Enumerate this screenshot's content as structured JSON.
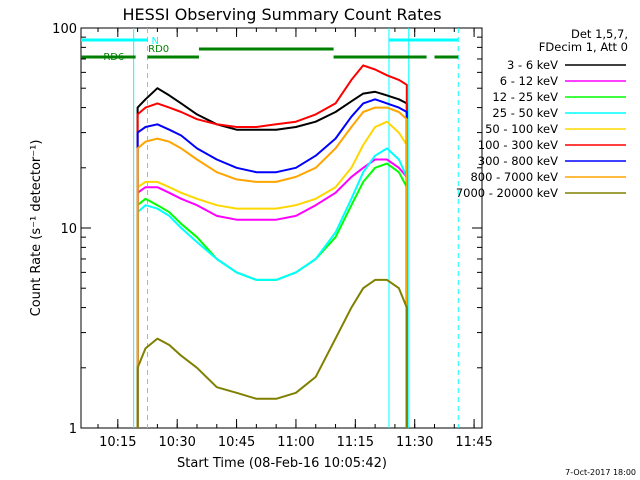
{
  "chart_data": {
    "type": "line",
    "title": "HESSI Observing Summary Count Rates",
    "xlabel": "Start Time (08-Feb-16 10:05:42)",
    "ylabel": "Count Rate (s⁻¹ detector⁻¹)",
    "y_scale": "log",
    "xlim": [
      "10:05:42",
      "11:47:00"
    ],
    "ylim": [
      1,
      100
    ],
    "x_tick_labels": [
      "10:15",
      "10:30",
      "10:45",
      "11:00",
      "11:15",
      "11:30",
      "11:45"
    ],
    "y_tick_labels": [
      "1",
      "10",
      "100"
    ],
    "legend_header": [
      "Det 1,5,7,",
      "FDecim 1, Att 0"
    ],
    "legend_position": "right",
    "footer": "7-Oct-2017 18:00",
    "data_gap_end": "10:19:00",
    "data_gap_start": "11:28:30",
    "flags": [
      {
        "label": "N",
        "color": "#00ffff",
        "segments": [
          [
            "10:05:42",
            "10:22:30"
          ],
          [
            "11:23:30",
            "11:41:00"
          ]
        ]
      },
      {
        "label": "RD0",
        "color": "#008000",
        "segments": [
          [
            "10:35:30",
            "11:09:30"
          ]
        ]
      },
      {
        "label": "RD6",
        "color": "#008000",
        "segments": [
          [
            "10:05:42",
            "10:19:30"
          ],
          [
            "10:22:30",
            "10:35:30"
          ],
          [
            "11:09:30",
            "11:33:00"
          ],
          [
            "11:35:00",
            "11:41:00"
          ]
        ]
      }
    ],
    "vertical_markers": [
      {
        "time": "10:22:30",
        "color": "#00ffff",
        "style": "dashed"
      },
      {
        "time": "11:23:30",
        "color": "#00ffff",
        "style": "solid"
      },
      {
        "time": "11:41:00",
        "color": "#00ffff",
        "style": "dashed"
      }
    ],
    "x": [
      "10:20",
      "10:22",
      "10:25",
      "10:28",
      "10:31",
      "10:35",
      "10:40",
      "10:45",
      "10:50",
      "10:55",
      "11:00",
      "11:05",
      "11:10",
      "11:14",
      "11:17",
      "11:20",
      "11:23",
      "11:26",
      "11:28"
    ],
    "series": [
      {
        "name": "3 - 6 keV",
        "color": "#000000",
        "values": [
          40,
          44,
          50,
          46,
          42,
          37,
          33,
          31,
          31,
          31,
          32,
          34,
          38,
          43,
          47,
          48,
          46,
          44,
          42
        ]
      },
      {
        "name": "6 - 12 keV",
        "color": "#ff00ff",
        "values": [
          15,
          16,
          16,
          15,
          14,
          13,
          11.5,
          11,
          11,
          11,
          11.5,
          13,
          15,
          18,
          20,
          22,
          22,
          20,
          18
        ]
      },
      {
        "name": "12 - 25 keV",
        "color": "#00ff00",
        "values": [
          13,
          14,
          13,
          12,
          10.5,
          9,
          7,
          6,
          5.5,
          5.5,
          6,
          7,
          9,
          13,
          17,
          20,
          21,
          19,
          16
        ]
      },
      {
        "name": "25 - 50 keV",
        "color": "#00ffff",
        "values": [
          12,
          13,
          12.5,
          11.5,
          10,
          8.5,
          7,
          6,
          5.5,
          5.5,
          6,
          7,
          9.5,
          14,
          19,
          23,
          25,
          22,
          18
        ]
      },
      {
        "name": "50 - 100 keV",
        "color": "#ffd700",
        "values": [
          16,
          17,
          17,
          16,
          15,
          14,
          13,
          12.5,
          12.5,
          12.5,
          13,
          14,
          16,
          20,
          26,
          32,
          34,
          30,
          26
        ]
      },
      {
        "name": "100 - 300 keV",
        "color": "#ff0000",
        "values": [
          37,
          40,
          42,
          40,
          38,
          35,
          33,
          32,
          32,
          33,
          34,
          37,
          42,
          55,
          65,
          62,
          58,
          55,
          52
        ]
      },
      {
        "name": "300 - 800 keV",
        "color": "#0000ff",
        "values": [
          30,
          32,
          33,
          31,
          29,
          25,
          22,
          20,
          19,
          19,
          20,
          23,
          28,
          36,
          42,
          44,
          42,
          40,
          38
        ]
      },
      {
        "name": "800 - 7000 keV",
        "color": "#ffa500",
        "values": [
          25,
          27,
          28,
          27,
          25,
          22,
          19,
          17.5,
          17,
          17,
          18,
          20,
          25,
          32,
          38,
          40,
          40,
          38,
          35
        ]
      },
      {
        "name": "7000 - 20000 keV",
        "color": "#808000",
        "values": [
          2,
          2.5,
          2.8,
          2.6,
          2.3,
          2,
          1.6,
          1.5,
          1.4,
          1.4,
          1.5,
          1.8,
          2.8,
          4,
          5,
          5.5,
          5.5,
          5,
          4
        ]
      }
    ]
  }
}
